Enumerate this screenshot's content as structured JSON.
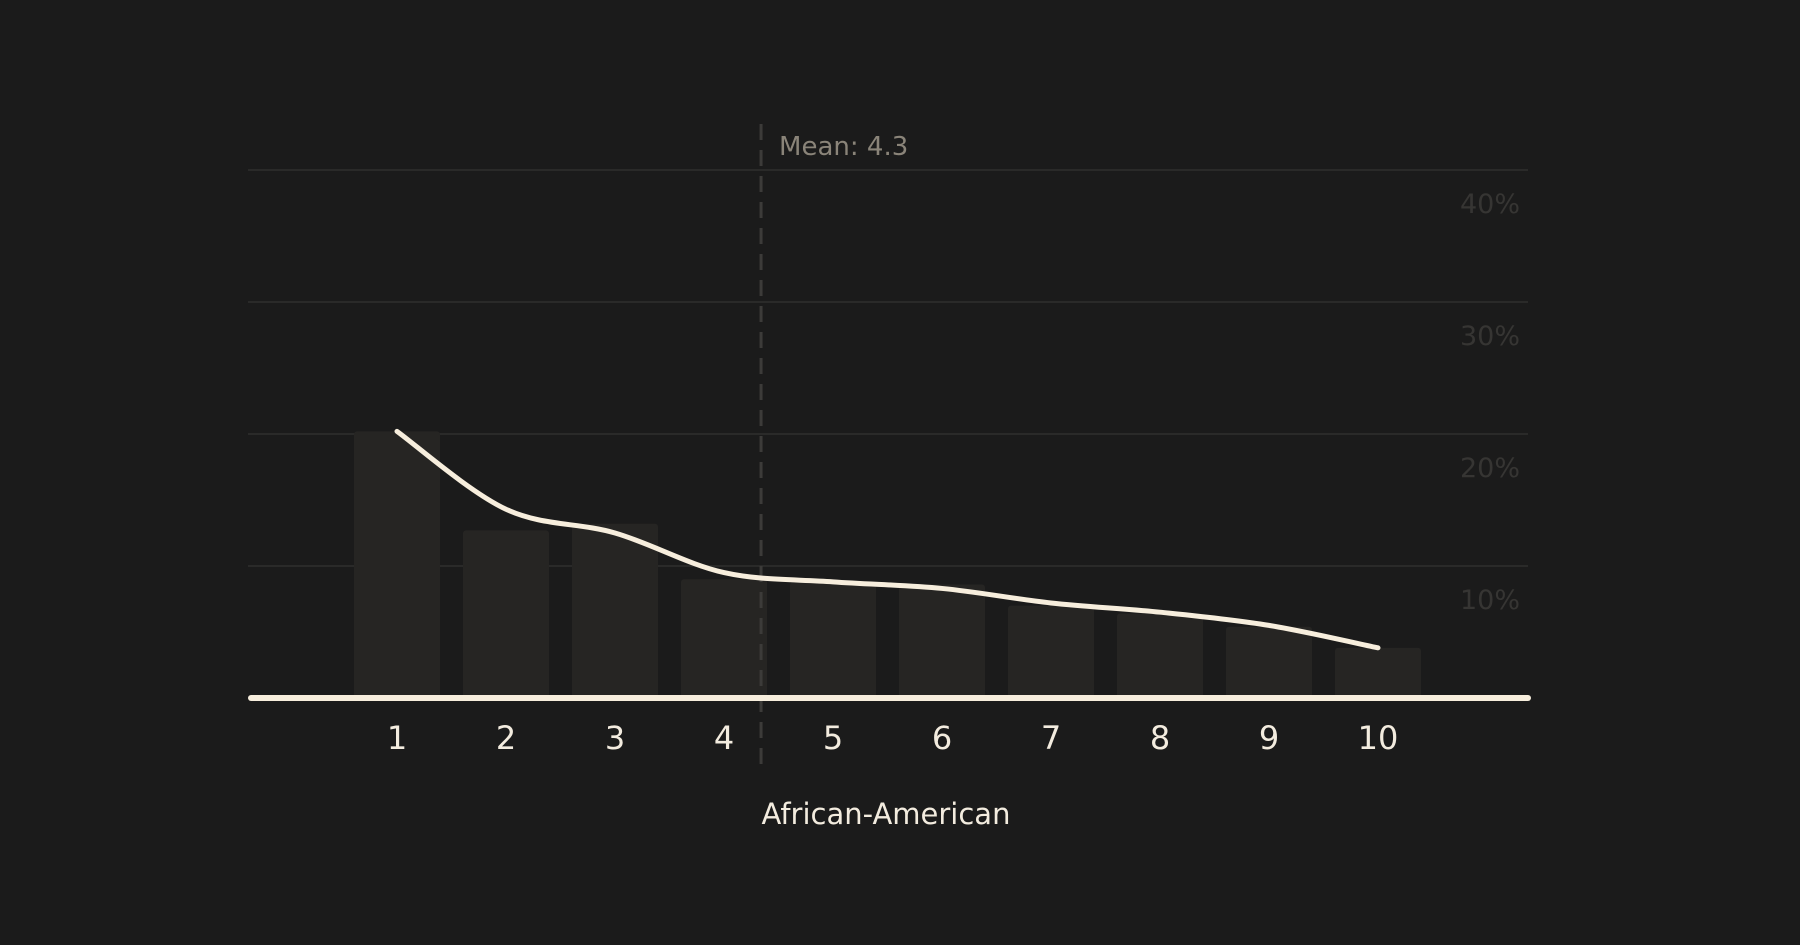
{
  "chart_data": {
    "type": "bar",
    "categories": [
      "1",
      "2",
      "3",
      "4",
      "5",
      "6",
      "7",
      "8",
      "9",
      "10"
    ],
    "values": [
      20.2,
      12.7,
      13.2,
      9.0,
      8.8,
      8.6,
      7.0,
      6.4,
      5.4,
      3.8
    ],
    "trend_values": [
      20.2,
      14.3,
      12.5,
      9.5,
      8.8,
      8.3,
      7.2,
      6.5,
      5.5,
      3.8
    ],
    "mean": 4.3,
    "mean_label": "Mean: 4.3",
    "yticks": [
      "10%",
      "20%",
      "30%",
      "40%"
    ],
    "ytick_values": [
      10,
      20,
      30,
      40
    ],
    "ylim": [
      0,
      40
    ],
    "title": "",
    "xlabel": "African-American",
    "ylabel": "",
    "grid": true,
    "colors": {
      "background": "#1b1b1b",
      "bar": "#262523",
      "line": "#f7eedd",
      "axis": "#f7eedd",
      "grid": "#2a2a29",
      "mean_line": "#3c3b39"
    }
  }
}
